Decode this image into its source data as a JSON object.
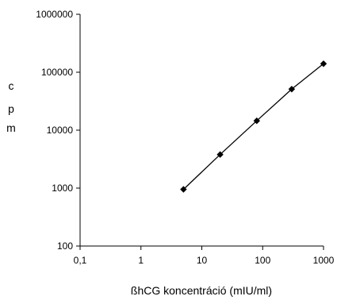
{
  "chart_data": {
    "type": "scatter",
    "xscale": "log",
    "yscale": "log",
    "xlim": [
      0.1,
      1000
    ],
    "ylim": [
      100,
      1000000
    ],
    "xticks": [
      "0,1",
      "1",
      "10",
      "100",
      "1000"
    ],
    "yticks": [
      "100",
      "1000",
      "10000",
      "100000",
      "1000000"
    ],
    "xlabel": "ßhCG koncentráció (mIU/ml)",
    "ylabel_chars": [
      "c",
      "p",
      "m"
    ],
    "grid": false,
    "legend": "none",
    "series": [
      {
        "marker": "diamond",
        "line": true,
        "color": "#000000",
        "x": [
          5,
          20,
          80,
          300,
          1000
        ],
        "y": [
          950,
          3800,
          14500,
          51000,
          140000
        ]
      }
    ]
  }
}
